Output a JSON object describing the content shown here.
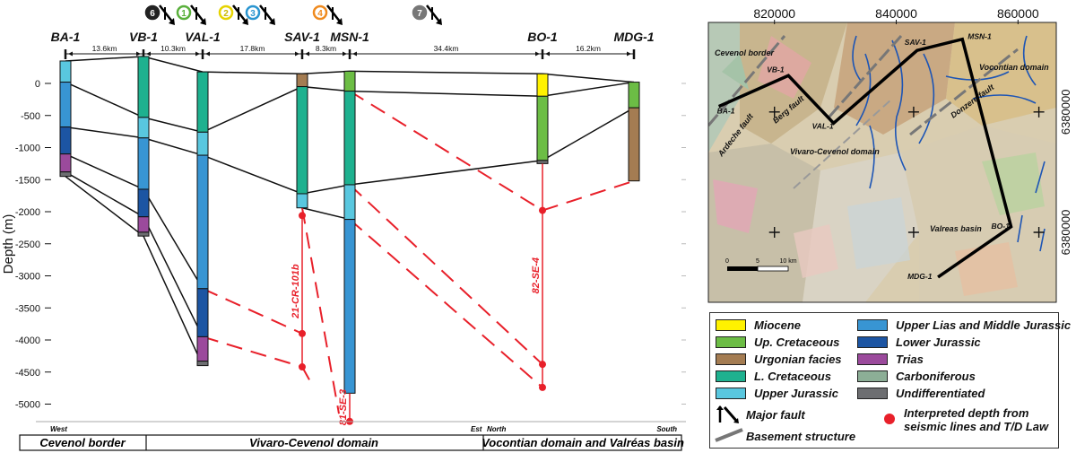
{
  "section": {
    "ylabel": "Depth (m)",
    "depth_ticks": [
      0,
      -500,
      -1000,
      -1500,
      -2000,
      -2500,
      -3000,
      -3500,
      -4000,
      -4500,
      -5000
    ],
    "wells": [
      {
        "name": "BA-1",
        "x": 73,
        "units": [
          {
            "top": 350,
            "bottom": 20,
            "color": "upper_jurassic"
          },
          {
            "top": 20,
            "bottom": -680,
            "color": "upper_lias_middle_jurassic"
          },
          {
            "top": -680,
            "bottom": -1100,
            "color": "lower_jurassic"
          },
          {
            "top": -1100,
            "bottom": -1380,
            "color": "trias"
          },
          {
            "top": -1380,
            "bottom": -1450,
            "color": "undifferentiated"
          }
        ]
      },
      {
        "name": "VB-1",
        "x": 160,
        "units": [
          {
            "top": 420,
            "bottom": -530,
            "color": "l_cretaceous"
          },
          {
            "top": -530,
            "bottom": -850,
            "color": "upper_jurassic"
          },
          {
            "top": -850,
            "bottom": -1650,
            "color": "upper_lias_middle_jurassic"
          },
          {
            "top": -1650,
            "bottom": -2080,
            "color": "lower_jurassic"
          },
          {
            "top": -2080,
            "bottom": -2320,
            "color": "trias"
          },
          {
            "top": -2320,
            "bottom": -2380,
            "color": "undifferentiated"
          }
        ]
      },
      {
        "name": "VAL-1",
        "x": 226,
        "units": [
          {
            "top": 180,
            "bottom": -760,
            "color": "l_cretaceous"
          },
          {
            "top": -760,
            "bottom": -1120,
            "color": "upper_jurassic"
          },
          {
            "top": -1120,
            "bottom": -3200,
            "color": "upper_lias_middle_jurassic"
          },
          {
            "top": -3200,
            "bottom": -3950,
            "color": "lower_jurassic"
          },
          {
            "top": -3950,
            "bottom": -4330,
            "color": "trias"
          },
          {
            "top": -4330,
            "bottom": -4400,
            "color": "undifferentiated"
          }
        ]
      },
      {
        "name": "SAV-1",
        "x": 337,
        "units": [
          {
            "top": 150,
            "bottom": -50,
            "color": "urgonian"
          },
          {
            "top": -50,
            "bottom": -1720,
            "color": "l_cretaceous"
          },
          {
            "top": -1720,
            "bottom": -1940,
            "color": "upper_jurassic"
          }
        ]
      },
      {
        "name": "MSN-1",
        "x": 390,
        "units": [
          {
            "top": 190,
            "bottom": -120,
            "color": "up_cretaceous"
          },
          {
            "top": -120,
            "bottom": -1580,
            "color": "l_cretaceous"
          },
          {
            "top": -1580,
            "bottom": -2120,
            "color": "upper_jurassic"
          },
          {
            "top": -2120,
            "bottom": -4830,
            "color": "upper_lias_middle_jurassic"
          }
        ]
      },
      {
        "name": "BO-1",
        "x": 605,
        "units": [
          {
            "top": 150,
            "bottom": -200,
            "color": "miocene"
          },
          {
            "top": -200,
            "bottom": -1200,
            "color": "up_cretaceous"
          },
          {
            "top": -1200,
            "bottom": -1250,
            "color": "undifferentiated"
          }
        ]
      },
      {
        "name": "MDG-1",
        "x": 707,
        "units": [
          {
            "top": 20,
            "bottom": -380,
            "color": "up_cretaceous"
          },
          {
            "top": -380,
            "bottom": -1520,
            "color": "urgonian"
          }
        ]
      }
    ],
    "distances": [
      "13.6km",
      "10.3km",
      "17.8km",
      "8.3km",
      "34.4km",
      "16.2km"
    ],
    "horizons": [
      [
        [
          73,
          350
        ],
        [
          160,
          420
        ],
        [
          226,
          180
        ],
        [
          337,
          150
        ],
        [
          390,
          190
        ],
        [
          605,
          150
        ],
        [
          707,
          20
        ]
      ],
      [
        [
          73,
          20
        ],
        [
          160,
          -530
        ],
        [
          226,
          -760
        ],
        [
          337,
          -50
        ],
        [
          390,
          -120
        ],
        [
          605,
          -200
        ],
        [
          707,
          20
        ]
      ],
      [
        [
          73,
          -680
        ],
        [
          160,
          -850
        ],
        [
          226,
          -1120
        ],
        [
          337,
          -1720
        ],
        [
          390,
          -1580
        ],
        [
          605,
          -1200
        ],
        [
          707,
          -380
        ]
      ],
      [
        [
          73,
          -1100
        ],
        [
          160,
          -1650
        ],
        [
          226,
          -3200
        ]
      ],
      [
        [
          73,
          -1380
        ],
        [
          160,
          -2080
        ],
        [
          226,
          -3950
        ]
      ],
      [
        [
          73,
          -1450
        ],
        [
          160,
          -2380
        ],
        [
          226,
          -4400
        ]
      ],
      [
        [
          337,
          -1940
        ],
        [
          390,
          -2120
        ]
      ]
    ],
    "interpreted_lines": [
      [
        [
          226,
          -3200
        ],
        [
          337,
          -3900
        ]
      ],
      [
        [
          226,
          -3950
        ],
        [
          337,
          -4420
        ]
      ],
      [
        [
          337,
          -4420
        ],
        [
          345,
          -4620
        ]
      ],
      [
        [
          390,
          -120
        ],
        [
          605,
          -1980
        ]
      ],
      [
        [
          390,
          -1580
        ],
        [
          605,
          -4380
        ]
      ],
      [
        [
          390,
          -2120
        ],
        [
          605,
          -4740
        ]
      ],
      [
        [
          605,
          -1980
        ],
        [
          707,
          -1520
        ]
      ],
      [
        [
          337,
          -1940
        ],
        [
          378,
          -5150
        ]
      ]
    ],
    "seismic_lines": [
      {
        "name": "21-CR-101b",
        "x": 337,
        "top": -2060,
        "bottom": -4420,
        "points": [
          -2060,
          -3900,
          -4420
        ]
      },
      {
        "name": "82-SE-4",
        "x": 605,
        "top": -1250,
        "bottom": -4740,
        "points": [
          -1980,
          -4380,
          -4740
        ]
      },
      {
        "name": "81-SE-3",
        "x": 390,
        "top": -4830,
        "bottom": -5270,
        "points": [
          -5270
        ]
      }
    ],
    "faults": [
      {
        "label": "6",
        "x": 170,
        "ring": "#222222",
        "fill": "#222222",
        "text": "#ffffff"
      },
      {
        "label": "1",
        "x": 205,
        "ring": "#5ab03c",
        "fill": "#ffffff",
        "text": "#5ab03c"
      },
      {
        "label": "2",
        "x": 252,
        "ring": "#e6d300",
        "fill": "#ffffff",
        "text": "#c9b800"
      },
      {
        "label": "3",
        "x": 282,
        "ring": "#2a95d0",
        "fill": "#ffffff",
        "text": "#2a95d0"
      },
      {
        "label": "4",
        "x": 357,
        "ring": "#ef8a1e",
        "fill": "#ffffff",
        "text": "#ef8a1e"
      },
      {
        "label": "7",
        "x": 468,
        "ring": "#777777",
        "fill": "#777777",
        "text": "#ffffff"
      }
    ],
    "labels": {
      "west": "West",
      "est": "Est",
      "north": "North",
      "south": "South"
    },
    "domains": [
      "Cevenol border",
      "Vivaro-Cevenol domain",
      "Vocontian domain and Valréas basin"
    ]
  },
  "map": {
    "x_ticks": [
      "820000",
      "840000",
      "860000"
    ],
    "y_ticks": [
      "6380000",
      "6380000"
    ],
    "wells": [
      {
        "name": "BA-1",
        "xy": [
          0.03,
          0.3
        ]
      },
      {
        "name": "VB-1",
        "xy": [
          0.23,
          0.19
        ]
      },
      {
        "name": "VAL-1",
        "xy": [
          0.36,
          0.36
        ]
      },
      {
        "name": "SAV-1",
        "xy": [
          0.6,
          0.1
        ]
      },
      {
        "name": "MSN-1",
        "xy": [
          0.73,
          0.06
        ]
      },
      {
        "name": "BO-1",
        "xy": [
          0.87,
          0.73
        ]
      },
      {
        "name": "MDG-1",
        "xy": [
          0.66,
          0.91
        ]
      }
    ],
    "region_labels": [
      "Cevenol border",
      "Vocontian domain",
      "Vivaro-Cevenol domain",
      "Valreas basin",
      "Ardeche fault",
      "Berg fault",
      "Donzere fault"
    ],
    "scale": [
      "0",
      "5",
      "10 km"
    ]
  },
  "legend": {
    "items": [
      {
        "label": "Miocene",
        "color": "#fff200"
      },
      {
        "label": "Up. Cretaceous",
        "color": "#6cbd45"
      },
      {
        "label": "Urgonian facies",
        "color": "#a47c52"
      },
      {
        "label": "L. Cretaceous",
        "color": "#1eb18f"
      },
      {
        "label": "Upper Jurassic",
        "color": "#59c7df"
      },
      {
        "label": "Upper Lias and Middle Jurassic",
        "color": "#3895d3"
      },
      {
        "label": "Lower Jurassic",
        "color": "#1c55a3"
      },
      {
        "label": "Trias",
        "color": "#9b4a9c"
      },
      {
        "label": "Carboniferous",
        "color": "#8cae96"
      },
      {
        "label": "Undifferentiated",
        "color": "#6d6e71"
      }
    ],
    "major_fault": "Major fault",
    "basement_structure": "Basement structure",
    "interpreted_depth": "Interpreted depth from seismic lines and T/D Law"
  },
  "colors": {
    "miocene": "#fff200",
    "up_cretaceous": "#6cbd45",
    "urgonian": "#a47c52",
    "l_cretaceous": "#1eb18f",
    "upper_jurassic": "#59c7df",
    "upper_lias_middle_jurassic": "#3895d3",
    "lower_jurassic": "#1c55a3",
    "trias": "#9b4a9c",
    "carboniferous": "#8cae96",
    "undifferentiated": "#6d6e71",
    "interpreted": "#e8202a"
  }
}
